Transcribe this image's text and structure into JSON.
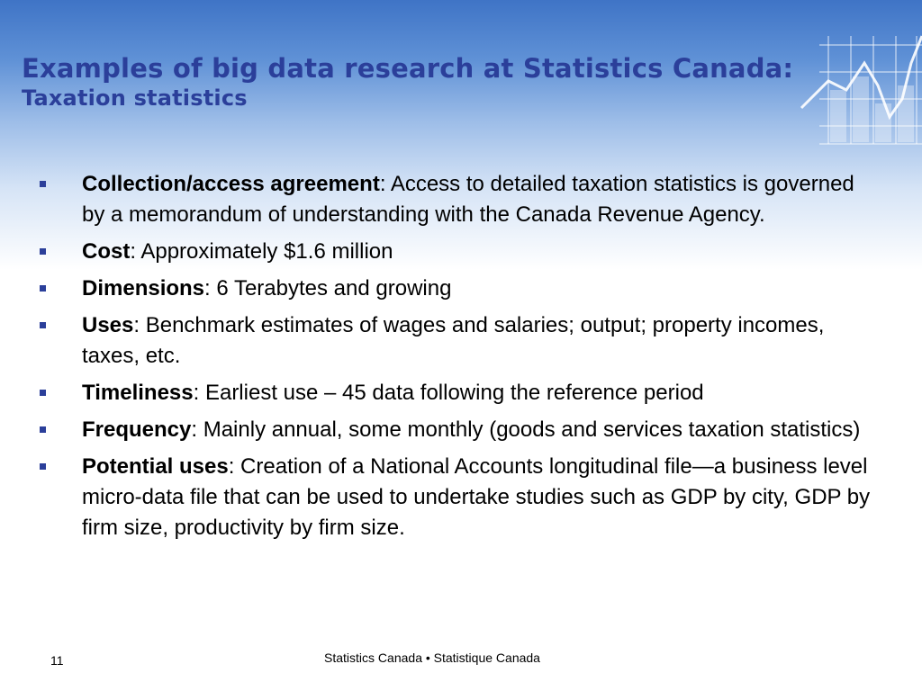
{
  "slide": {
    "title": "Examples of big data research at Statistics Canada:",
    "subtitle": "Taxation statistics",
    "bullets": [
      {
        "term": "Collection/access agreement",
        "text": ": Access to detailed taxation statistics is governed by a memorandum of understanding with the Canada Revenue Agency."
      },
      {
        "term": "Cost",
        "text": ": Approximately $1.6 million"
      },
      {
        "term": "Dimensions",
        "text": ": 6 Terabytes and growing"
      },
      {
        "term": "Uses",
        "text": ": Benchmark estimates of wages and salaries; output; property incomes, taxes, etc."
      },
      {
        "term": "Timeliness",
        "text": ": Earliest use – 45 data following the reference period"
      },
      {
        "term": "Frequency",
        "text": ": Mainly annual, some monthly (goods and services taxation statistics)"
      },
      {
        "term": "Potential uses",
        "text": ": Creation of a National Accounts longitudinal file—a business level micro-data file that can be used to undertake studies such as GDP by city, GDP by firm size, productivity by firm size."
      }
    ]
  },
  "footer": {
    "page_number": "11",
    "org": "Statistics Canada • Statistique Canada"
  },
  "colors": {
    "title": "#2b3f9a",
    "header_top": "#3f74c6",
    "bullet": "#2b3f9a"
  },
  "icons": {
    "header_decoration": "chart-line-grid-icon",
    "bullet": "square-bullet-icon"
  }
}
